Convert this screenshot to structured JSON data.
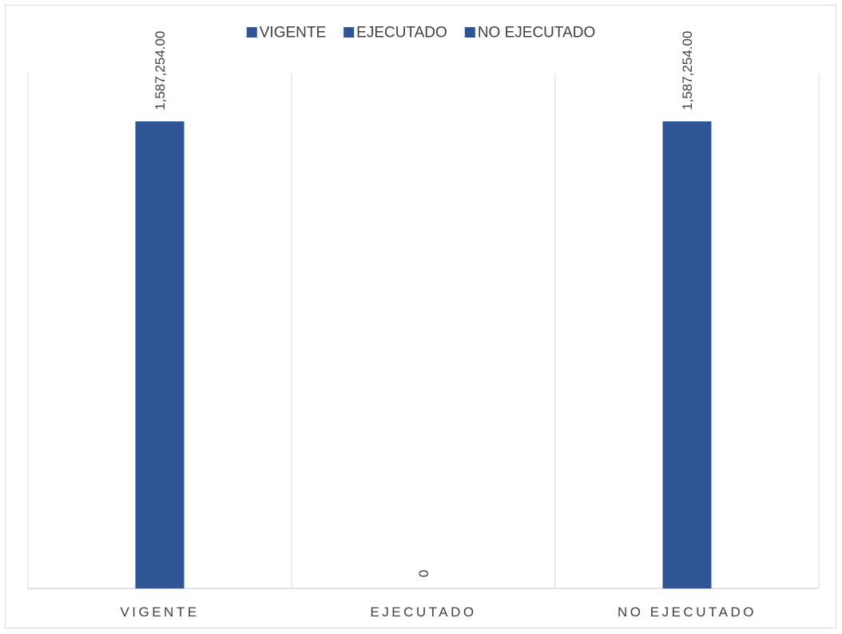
{
  "chart_data": {
    "type": "bar",
    "categories": [
      "VIGENTE",
      "EJECUTADO",
      "NO EJECUTADO"
    ],
    "values": [
      1587254.0,
      0,
      1587254.0
    ],
    "data_labels": [
      "1,587,254.00",
      "0",
      "1,587,254.00"
    ],
    "ylim": [
      0,
      1750000
    ],
    "grid": "vertical category separators",
    "legend": {
      "position": "top",
      "entries": [
        "VIGENTE",
        "EJECUTADO",
        "NO EJECUTADO"
      ]
    },
    "colors": {
      "bar": "#2f5597",
      "grid": "#d9d9d9",
      "text": "#404040"
    }
  }
}
